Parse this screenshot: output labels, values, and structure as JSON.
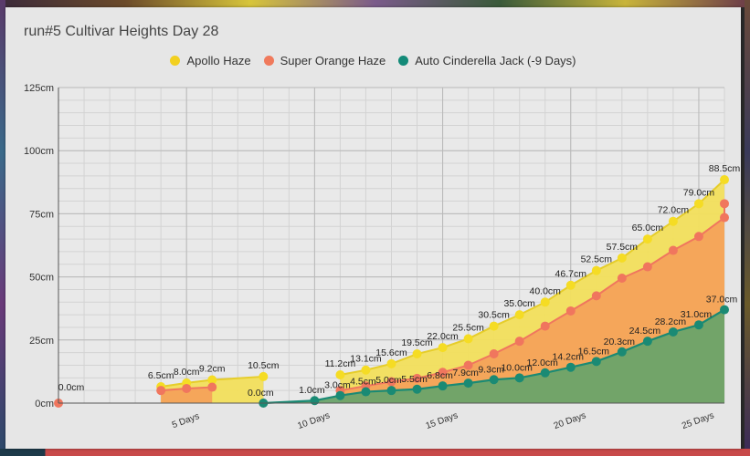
{
  "chart_data": {
    "type": "area",
    "title": "run#5 Cultivar Heights Day 28",
    "xlabel": "",
    "ylabel": "",
    "ylim": [
      0,
      125
    ],
    "xlim": [
      0,
      26
    ],
    "y_ticks": [
      "0cm",
      "25cm",
      "50cm",
      "75cm",
      "100cm",
      "125cm"
    ],
    "y_tick_values": [
      0,
      25,
      50,
      75,
      100,
      125
    ],
    "x_ticks": [
      "5 Days",
      "10 Days",
      "15 Days",
      "20 Days",
      "25 Days"
    ],
    "x_tick_values": [
      5,
      10,
      15,
      20,
      25
    ],
    "grid": true,
    "legend_position": "top",
    "series": [
      {
        "name": "Apollo Haze",
        "color": "#f2e030",
        "fill": "#f2df5c",
        "points": [
          [
            4,
            6.5
          ],
          [
            5,
            8.0
          ],
          [
            6,
            9.2
          ],
          [
            8,
            10.5
          ],
          [
            11,
            11.2
          ],
          [
            12,
            13.1
          ],
          [
            13,
            15.6
          ],
          [
            14,
            19.5
          ],
          [
            15,
            22.0
          ],
          [
            16,
            25.5
          ],
          [
            17,
            30.5
          ],
          [
            18,
            35.0
          ],
          [
            19,
            40.0
          ],
          [
            20,
            46.7
          ],
          [
            21,
            52.5
          ],
          [
            22,
            57.5
          ],
          [
            23,
            65.0
          ],
          [
            24,
            72.0
          ],
          [
            25,
            79.0
          ],
          [
            26,
            88.5
          ]
        ],
        "labels": [
          "6.5cm",
          "8.0cm",
          "9.2cm",
          "10.5cm",
          "11.2cm",
          "13.1cm",
          "15.6cm",
          "19.5cm",
          "22.0cm",
          "25.5cm",
          "30.5cm",
          "35.0cm",
          "40.0cm",
          "46.7cm",
          "52.5cm",
          "57.5cm",
          "65.0cm",
          "72.0cm",
          "79.0cm",
          "88.5cm"
        ]
      },
      {
        "name": "Super Orange Haze",
        "color": "#f0765e",
        "fill": "#f4a25a",
        "points": [
          [
            0,
            0
          ],
          [
            4,
            5.0
          ],
          [
            5,
            5.8
          ],
          [
            6,
            6.3
          ],
          [
            11,
            5.0
          ],
          [
            12,
            6.8
          ],
          [
            13,
            8.5
          ],
          [
            14,
            9.8
          ],
          [
            15,
            12.2
          ],
          [
            16,
            15.0
          ],
          [
            17,
            19.5
          ],
          [
            18,
            24.5
          ],
          [
            19,
            30.5
          ],
          [
            20,
            36.5
          ],
          [
            21,
            42.5
          ],
          [
            22,
            49.5
          ],
          [
            23,
            54.0
          ],
          [
            24,
            60.5
          ],
          [
            25,
            66.0
          ],
          [
            26,
            73.5
          ],
          [
            26,
            79.0
          ]
        ]
      },
      {
        "name": "Auto Cinderella Jack (-9 Days)",
        "color": "#1a8a74",
        "fill": "#6aa36a",
        "points": [
          [
            8,
            0.0
          ],
          [
            10,
            1.0
          ],
          [
            11,
            3.0
          ],
          [
            12,
            4.5
          ],
          [
            13,
            5.0
          ],
          [
            14,
            5.5
          ],
          [
            15,
            6.8
          ],
          [
            16,
            7.9
          ],
          [
            17,
            9.3
          ],
          [
            18,
            10.0
          ],
          [
            19,
            12.0
          ],
          [
            20,
            14.2
          ],
          [
            21,
            16.5
          ],
          [
            22,
            20.3
          ],
          [
            23,
            24.5
          ],
          [
            24,
            28.2
          ],
          [
            25,
            31.0
          ],
          [
            26,
            37.0
          ]
        ],
        "labels": [
          "0.0cm",
          "1.0cm",
          "3.0cm",
          "4.5cm",
          "5.0cm",
          "5.5cm",
          "6.8cm",
          "7.9cm",
          "9.3cm",
          "10.0cm",
          "12.0cm",
          "14.2cm",
          "16.5cm",
          "20.3cm",
          "24.5cm",
          "28.2cm",
          "31.0cm",
          "37.0cm"
        ]
      }
    ],
    "extra_labels": [
      {
        "x": 0,
        "y": 0,
        "text": "0.0cm"
      }
    ]
  },
  "legend": {
    "items": [
      {
        "label": "Apollo Haze",
        "color": "#f2d020"
      },
      {
        "label": "Super Orange Haze",
        "color": "#f07a5c"
      },
      {
        "label": "Auto Cinderella Jack (-9 Days)",
        "color": "#138a78"
      }
    ]
  }
}
